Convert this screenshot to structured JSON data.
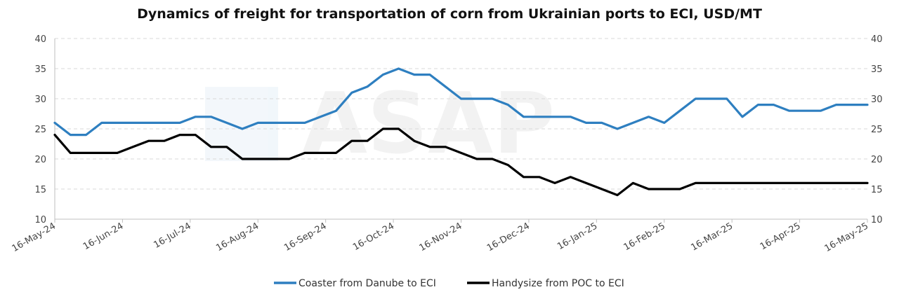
{
  "chart_data": {
    "type": "line",
    "title": "Dynamics of freight for transportation of corn from Ukrainian ports to ECI, USD/MT",
    "xlabel": "",
    "ylabel": "",
    "ylim": [
      10,
      40
    ],
    "y_ticks": [
      10,
      15,
      20,
      25,
      30,
      35,
      40
    ],
    "x_tick_labels": [
      "16-May-24",
      "16-Jun-24",
      "16-Jul-24",
      "16-Aug-24",
      "16-Sep-24",
      "16-Oct-24",
      "16-Nov-24",
      "16-Dec-24",
      "16-Jan-25",
      "16-Feb-25",
      "16-Mar-25",
      "16-Apr-25",
      "16-May-25"
    ],
    "x": [
      "16-May-24",
      "23-May-24",
      "30-May-24",
      "6-Jun-24",
      "13-Jun-24",
      "20-Jun-24",
      "27-Jun-24",
      "4-Jul-24",
      "11-Jul-24",
      "18-Jul-24",
      "25-Jul-24",
      "1-Aug-24",
      "8-Aug-24",
      "15-Aug-24",
      "22-Aug-24",
      "29-Aug-24",
      "5-Sep-24",
      "12-Sep-24",
      "19-Sep-24",
      "26-Sep-24",
      "3-Oct-24",
      "10-Oct-24",
      "17-Oct-24",
      "24-Oct-24",
      "31-Oct-24",
      "7-Nov-24",
      "14-Nov-24",
      "21-Nov-24",
      "28-Nov-24",
      "5-Dec-24",
      "12-Dec-24",
      "19-Dec-24",
      "26-Dec-24",
      "2-Jan-25",
      "9-Jan-25",
      "16-Jan-25",
      "23-Jan-25",
      "30-Jan-25",
      "6-Feb-25",
      "13-Feb-25",
      "20-Feb-25",
      "27-Feb-25",
      "6-Mar-25",
      "13-Mar-25",
      "20-Mar-25",
      "27-Mar-25",
      "3-Apr-25",
      "10-Apr-25",
      "17-Apr-25",
      "24-Apr-25",
      "1-May-25",
      "8-May-25",
      "16-May-25"
    ],
    "series": [
      {
        "name": "Coaster from Danube to ECI",
        "color": "#2e7fc0",
        "values": [
          26,
          24,
          24,
          26,
          26,
          26,
          26,
          26,
          26,
          27,
          27,
          26,
          25,
          26,
          26,
          26,
          26,
          27,
          28,
          31,
          32,
          34,
          35,
          34,
          34,
          32,
          30,
          30,
          30,
          29,
          27,
          27,
          27,
          27,
          26,
          26,
          25,
          26,
          27,
          26,
          28,
          30,
          30,
          30,
          27,
          29,
          29,
          28,
          28,
          28,
          29,
          29,
          29
        ]
      },
      {
        "name": "Handysize from POC to ECI",
        "color": "#000000",
        "values": [
          24,
          21,
          21,
          21,
          21,
          22,
          23,
          23,
          24,
          24,
          22,
          22,
          20,
          20,
          20,
          20,
          21,
          21,
          21,
          23,
          23,
          25,
          25,
          23,
          22,
          22,
          21,
          20,
          20,
          19,
          17,
          17,
          16,
          17,
          16,
          15,
          14,
          16,
          15,
          15,
          15,
          16,
          16,
          16,
          16,
          16,
          16,
          16,
          16,
          16,
          16,
          16,
          16
        ]
      }
    ],
    "grid": true,
    "legend_position": "bottom"
  },
  "watermark": "ASAP"
}
